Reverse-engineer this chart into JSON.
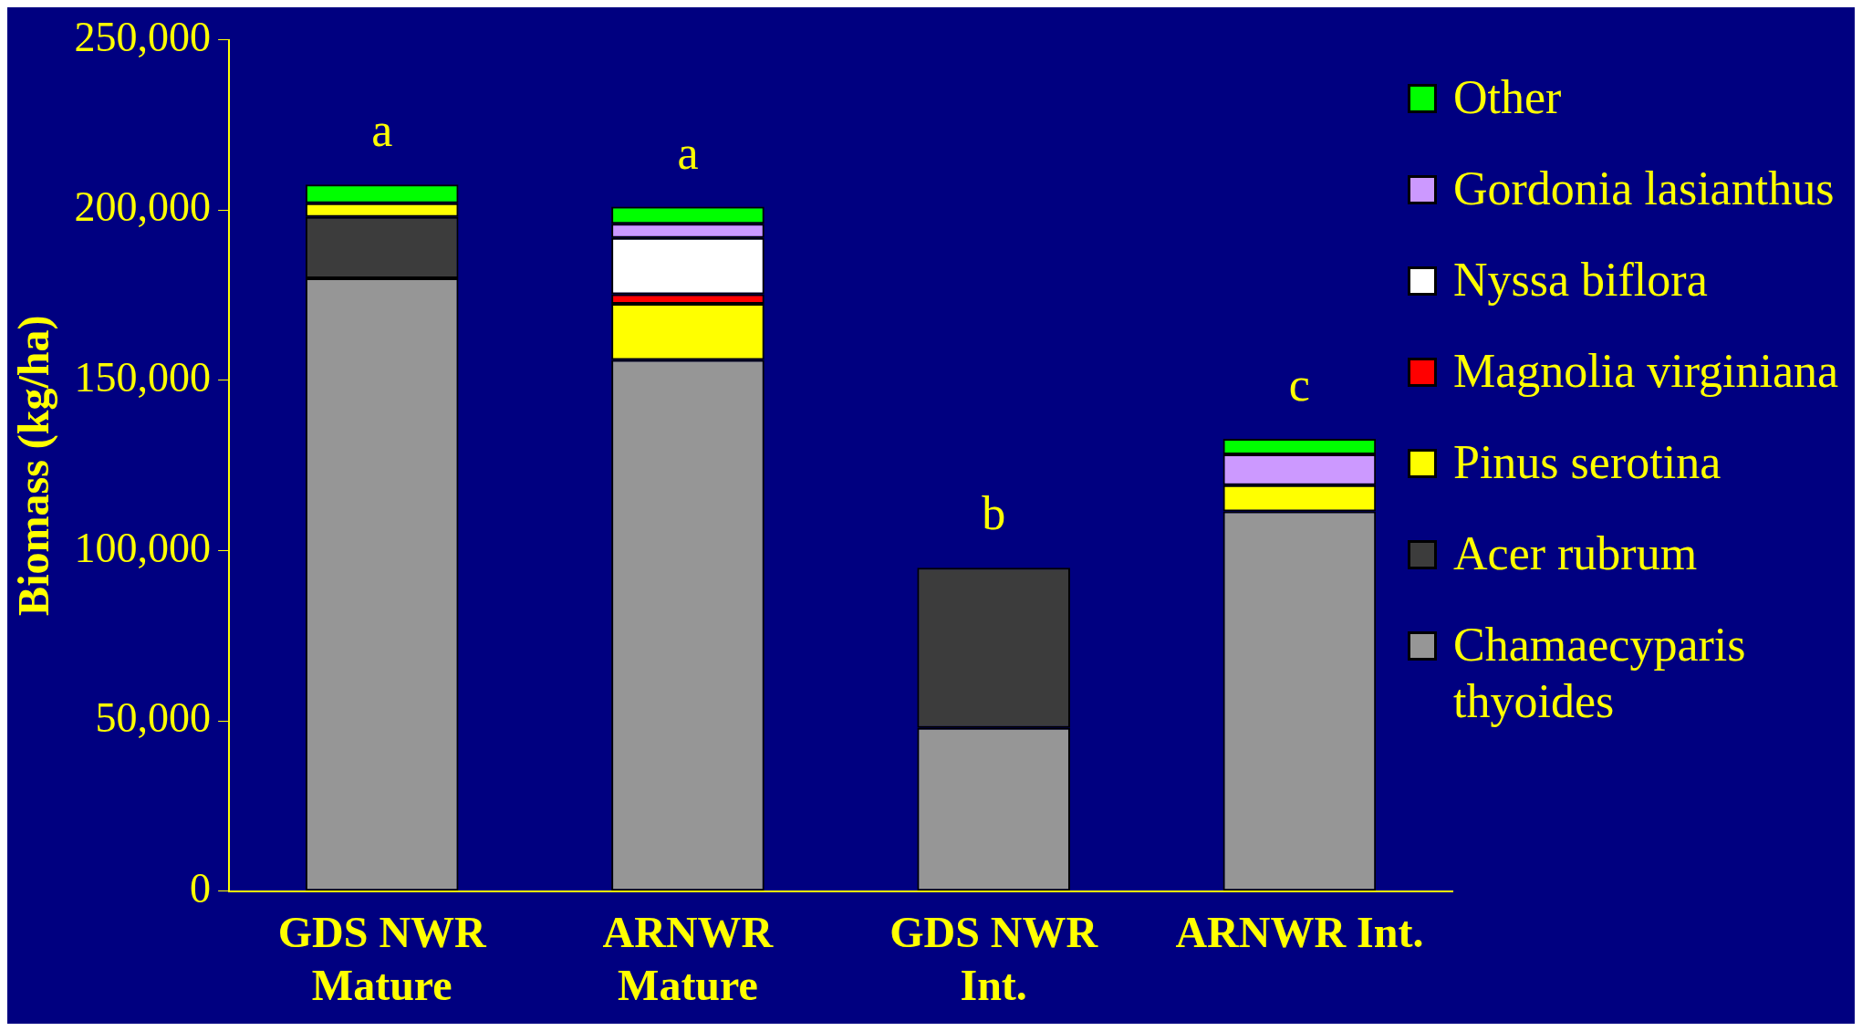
{
  "chart_data": {
    "type": "bar",
    "stacked": true,
    "ylabel": "Biomass (kg/ha)",
    "categories": [
      "GDS NWR\nMature",
      "ARNWR\nMature",
      "GDS NWR\nInt.",
      "ARNWR Int."
    ],
    "series": [
      {
        "name": "Chamaecyparis thyoides",
        "color": "#969696",
        "values": [
          180000,
          156000,
          48000,
          111500
        ]
      },
      {
        "name": "Acer rubrum",
        "color": "#3c3c3c",
        "values": [
          18000,
          null,
          47000,
          null
        ]
      },
      {
        "name": "Pinus serotina",
        "color": "#ffff00",
        "values": [
          4000,
          16500,
          null,
          7700
        ]
      },
      {
        "name": "Magnolia virginiana",
        "color": "#ff0000",
        "values": [
          null,
          2800,
          null,
          null
        ]
      },
      {
        "name": "Nyssa biflora",
        "color": "#ffffff",
        "values": [
          null,
          16500,
          null,
          null
        ]
      },
      {
        "name": "Gordonia lasianthus",
        "color": "#cc99ff",
        "values": [
          null,
          4200,
          null,
          9100
        ]
      },
      {
        "name": "Other",
        "color": "#00ff00",
        "values": [
          5500,
          5000,
          null,
          4500
        ]
      }
    ],
    "ylim": [
      0,
      250000
    ],
    "yticks": [
      0,
      {
        "value": 50000,
        "label": "50,000"
      },
      {
        "value": 100000,
        "label": "100,000"
      },
      {
        "value": 150000,
        "label": "150,000"
      },
      {
        "value": 200000,
        "label": "200,000"
      },
      {
        "value": 250000,
        "label": "250,000"
      }
    ],
    "grid": false,
    "legend": "right",
    "annotations": [
      "a",
      "a",
      "b",
      "c"
    ]
  }
}
